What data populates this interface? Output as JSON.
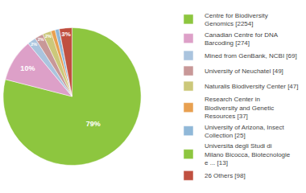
{
  "chart_data": {
    "type": "pie",
    "categories": [
      "Centre for Biodiversity\nGenomics [2254]",
      "Canadian Centre for DNA\nBarcoding [274]",
      "Mined from GenBank, NCBI [69]",
      "University of Neuchatel [49]",
      "Naturalis Biodiversity Center [47]",
      "Research Center in\nBiodiversity and Genetic\nResources [37]",
      "University of Arizona, Insect\nCollection [25]",
      "Universita degli Studi di\nMilano Bicocca, Biotecnologie\ne ... [13]",
      "26 Others [98]"
    ],
    "values": [
      79,
      10,
      2,
      2,
      2,
      1,
      1,
      0,
      3
    ],
    "value_labels": [
      "79%",
      "10%",
      "2%",
      "2%",
      "2%",
      null,
      null,
      null,
      "3%"
    ],
    "colors": [
      "#8dc63f",
      "#dda0c8",
      "#aac4de",
      "#c89898",
      "#ccc87a",
      "#e8a050",
      "#90b8d8",
      "#8dc63f",
      "#c05040"
    ],
    "legend": "right"
  }
}
